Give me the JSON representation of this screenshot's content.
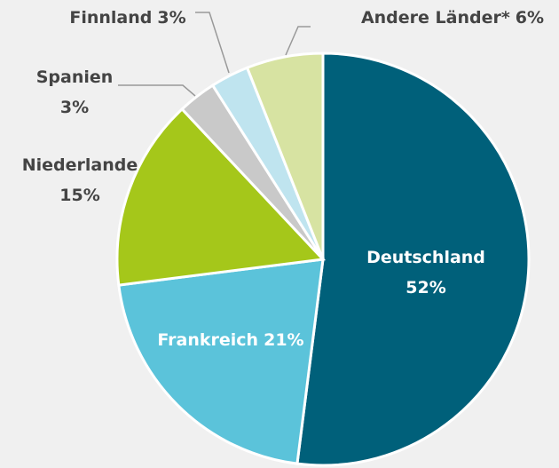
{
  "chart_data": {
    "type": "pie",
    "categories": [
      "Deutschland",
      "Frankreich",
      "Niederlande",
      "Spanien",
      "Finnland",
      "Andere Länder*"
    ],
    "values": [
      52,
      21,
      15,
      3,
      3,
      6
    ],
    "value_labels": [
      "52%",
      "21%",
      "15%",
      "3%",
      "3%",
      "6%"
    ],
    "colors": [
      "#00607a",
      "#5bc3da",
      "#a5c71a",
      "#c9c9c9",
      "#bfe4ef",
      "#d7e3a2"
    ]
  }
}
